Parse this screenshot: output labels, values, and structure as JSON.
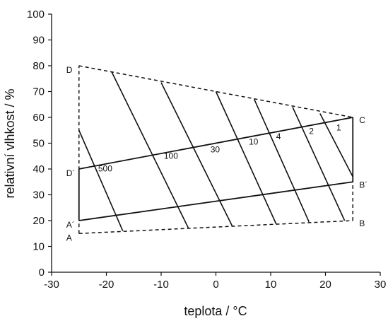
{
  "chart_data": {
    "type": "line",
    "xlabel": "teplota / °C",
    "ylabel": "relativní vlhkost / %",
    "xlim": [
      -30,
      30
    ],
    "ylim": [
      0,
      100
    ],
    "x_ticks": [
      -30,
      -20,
      -10,
      0,
      10,
      20,
      30
    ],
    "y_ticks": [
      0,
      10,
      20,
      30,
      40,
      50,
      60,
      70,
      80,
      90,
      100
    ],
    "grid": false,
    "colors": {
      "line": "#111111",
      "text": "#111111"
    },
    "points": [
      {
        "name": "A",
        "x": -25,
        "y": 15
      },
      {
        "name": "A´",
        "x": -25,
        "y": 20
      },
      {
        "name": "B",
        "x": 25,
        "y": 20
      },
      {
        "name": "B´",
        "x": 25,
        "y": 35
      },
      {
        "name": "C",
        "x": 25,
        "y": 60
      },
      {
        "name": "D",
        "x": -25,
        "y": 80
      },
      {
        "name": "D´",
        "x": -25,
        "y": 40
      }
    ],
    "boundary_dashed": [
      {
        "x": [
          -25,
          -25
        ],
        "y": [
          15,
          80
        ]
      },
      {
        "x": [
          -25,
          25
        ],
        "y": [
          15,
          20
        ]
      },
      {
        "x": [
          25,
          25
        ],
        "y": [
          20,
          35
        ]
      },
      {
        "x": [
          -25,
          25
        ],
        "y": [
          80,
          60
        ]
      }
    ],
    "boundary_solid": [
      {
        "x": [
          -25,
          -25
        ],
        "y": [
          20,
          40
        ]
      },
      {
        "x": [
          -25,
          25
        ],
        "y": [
          20,
          35
        ]
      },
      {
        "x": [
          -25,
          25
        ],
        "y": [
          40,
          60
        ]
      },
      {
        "x": [
          25,
          25
        ],
        "y": [
          35,
          60
        ]
      }
    ],
    "series": [
      {
        "x": [
          -25,
          -17
        ],
        "y": [
          55,
          16
        ]
      },
      {
        "x": [
          -19,
          -5
        ],
        "y": [
          77.5,
          17
        ]
      },
      {
        "x": [
          -10,
          3
        ],
        "y": [
          73.5,
          17.8
        ]
      },
      {
        "x": [
          0,
          11
        ],
        "y": [
          70,
          18.7
        ]
      },
      {
        "x": [
          7,
          17
        ],
        "y": [
          67,
          19.5
        ]
      },
      {
        "x": [
          14,
          23.5
        ],
        "y": [
          64,
          20
        ]
      },
      {
        "x": [
          19,
          25
        ],
        "y": [
          61.5,
          37
        ]
      }
    ],
    "annotations": [
      {
        "text": "500",
        "x": -21.5,
        "y": 39
      },
      {
        "text": "100",
        "x": -9.5,
        "y": 44
      },
      {
        "text": "30",
        "x": -1,
        "y": 46.5
      },
      {
        "text": "10",
        "x": 6,
        "y": 49.5
      },
      {
        "text": "4",
        "x": 11,
        "y": 51.5
      },
      {
        "text": "2",
        "x": 17,
        "y": 53.5
      },
      {
        "text": "1",
        "x": 22,
        "y": 55
      }
    ]
  }
}
